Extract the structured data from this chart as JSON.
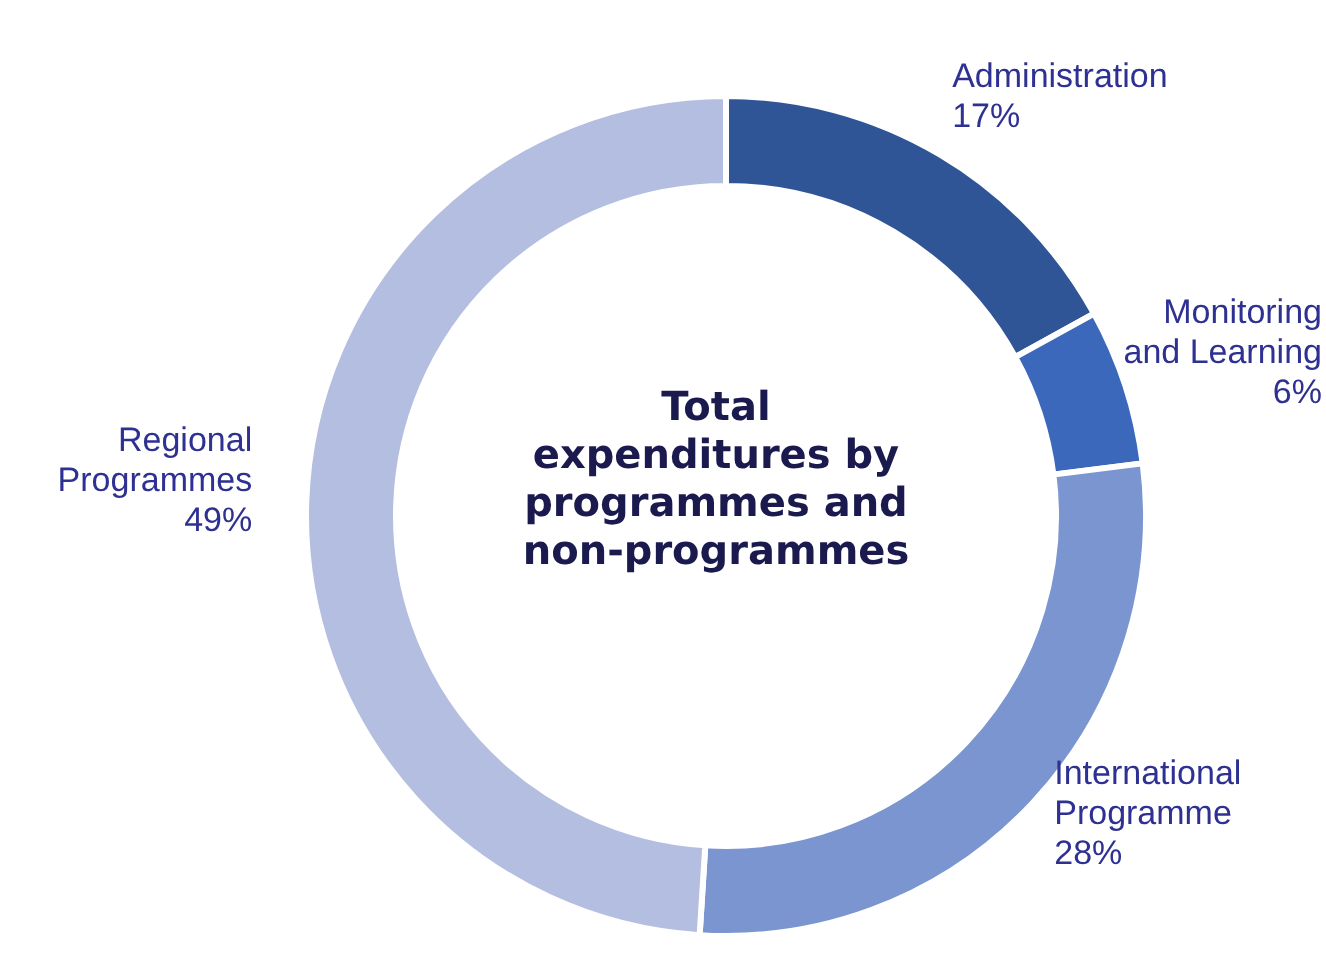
{
  "chart_data": {
    "type": "donut",
    "title": "Total expenditures by programmes and non-programmes",
    "categories": [
      "Administration",
      "Monitoring and Learning",
      "International Programme",
      "Regional Programmes"
    ],
    "values": [
      17,
      6,
      28,
      49
    ],
    "value_labels": [
      "17%",
      "6%",
      "28%",
      "49%"
    ],
    "colors": [
      "#2f5597",
      "#3b68ba",
      "#7b95d1",
      "#b3bee0"
    ]
  }
}
